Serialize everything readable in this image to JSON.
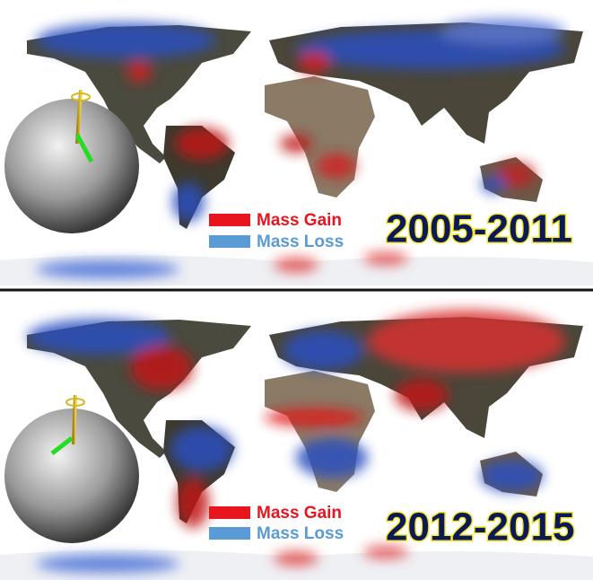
{
  "panels": [
    {
      "period": "2005-2011",
      "legend": [
        {
          "label": "Mass Gain",
          "color": "#e8141e"
        },
        {
          "label": "Mass Loss",
          "color": "#5b9bd5"
        }
      ]
    },
    {
      "period": "2012-2015",
      "legend": [
        {
          "label": "Mass Gain",
          "color": "#e8141e"
        },
        {
          "label": "Mass Loss",
          "color": "#5b9bd5"
        }
      ]
    }
  ]
}
